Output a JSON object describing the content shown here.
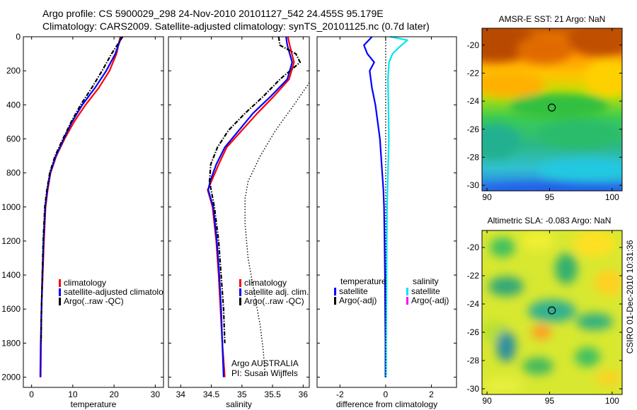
{
  "header": {
    "line1": "Argo profile: CS 5900029_298 24-Nov-2010 20101127_542 24.455S 95.179E",
    "line2": "Climatology: CARS2009. Satellite-adjusted climatology: synTS_20101125.nc (0.7d later)"
  },
  "side_note": "CSIRO 01-Dec-2010 10:31:36",
  "colors": {
    "climatology": "#ff0000",
    "satellite": "#0000ff",
    "argo": "#000000",
    "sal_satellite": "#00e5ee",
    "sal_argo": "#ff00ff"
  },
  "chart_data": [
    {
      "type": "line",
      "name": "temperature-profile",
      "xlabel": "temperature",
      "ylabel": "",
      "xlim": [
        -2,
        32
      ],
      "ylim": [
        2060,
        0
      ],
      "xticks": [
        0,
        10,
        20,
        30
      ],
      "yticks": [
        0,
        200,
        400,
        600,
        800,
        1000,
        1200,
        1400,
        1600,
        1800,
        2000
      ],
      "legend": [
        "climatology",
        "satellite-adjusted climatolo",
        "Argo(..raw -QC)"
      ],
      "series": [
        {
          "name": "climatology",
          "style": "solid",
          "color": "#ff0000",
          "x": [
            21.5,
            20.6,
            18.9,
            16.3,
            13.1,
            10.3,
            8.0,
            6.0,
            4.6,
            3.9,
            3.4,
            3.0,
            2.7,
            2.4,
            2.3,
            2.2
          ],
          "y": [
            0,
            100,
            200,
            300,
            400,
            500,
            600,
            700,
            800,
            900,
            1000,
            1200,
            1400,
            1600,
            1800,
            2000
          ]
        },
        {
          "name": "satellite-adjusted climatolo",
          "style": "solid",
          "color": "#0000ff",
          "x": [
            21.8,
            20.3,
            18.1,
            15.4,
            12.3,
            9.8,
            7.8,
            5.9,
            4.5,
            3.8,
            3.3,
            2.9,
            2.6,
            2.4,
            2.2,
            2.1
          ],
          "y": [
            0,
            100,
            200,
            300,
            400,
            500,
            600,
            700,
            800,
            900,
            1000,
            1200,
            1400,
            1600,
            1800,
            2000
          ]
        },
        {
          "name": "Argo(..raw -QC)",
          "style": "dashdot",
          "color": "#000000",
          "x": [
            22.1,
            19.4,
            17.1,
            14.6,
            11.9,
            9.6,
            7.6,
            5.7,
            4.4,
            3.7,
            3.2,
            2.8,
            2.6,
            2.4,
            2.3
          ],
          "y": [
            0,
            100,
            200,
            300,
            400,
            500,
            600,
            700,
            800,
            900,
            1000,
            1200,
            1400,
            1600,
            1800
          ]
        }
      ]
    },
    {
      "type": "line",
      "name": "salinity-profile",
      "xlabel": "salinity",
      "ylabel": "",
      "xlim": [
        33.8,
        36.1
      ],
      "ylim": [
        2060,
        0
      ],
      "xticks": [
        34,
        34.5,
        35,
        35.5,
        36
      ],
      "xticklabels": [
        "34",
        "34.5",
        "35",
        "35.5",
        "36"
      ],
      "legend": [
        "climatology",
        "satellite adj. clim.",
        "Argo(..raw -QC)"
      ],
      "annotations": [
        "Argo AUSTRALIA",
        "PI: Susan Wijffels"
      ],
      "series": [
        {
          "name": "climatology",
          "style": "solid",
          "color": "#ff0000",
          "x": [
            35.75,
            35.78,
            35.85,
            35.77,
            35.52,
            35.25,
            35.0,
            34.75,
            34.62,
            34.5,
            34.44,
            34.52,
            34.58,
            34.62,
            34.65,
            34.68,
            34.7,
            34.72
          ],
          "y": [
            0,
            50,
            150,
            250,
            350,
            450,
            550,
            650,
            750,
            850,
            900,
            1000,
            1200,
            1400,
            1600,
            1800,
            1900,
            2000
          ]
        },
        {
          "name": "satellite adj. clim.",
          "style": "solid",
          "color": "#0000ff",
          "x": [
            35.72,
            35.74,
            35.82,
            35.74,
            35.47,
            35.18,
            34.95,
            34.72,
            34.58,
            34.48,
            34.45,
            34.53,
            34.59,
            34.63,
            34.66,
            34.68,
            34.69,
            34.7
          ],
          "y": [
            0,
            50,
            150,
            250,
            350,
            450,
            550,
            650,
            750,
            850,
            900,
            1000,
            1200,
            1400,
            1600,
            1800,
            1900,
            2000
          ]
        },
        {
          "name": "Argo(..raw -QC)",
          "style": "dashdot",
          "color": "#000000",
          "x": [
            35.6,
            35.62,
            35.88,
            35.95,
            35.62,
            35.35,
            35.05,
            34.78,
            34.6,
            34.49,
            34.47,
            34.55,
            34.62,
            34.66,
            34.7,
            34.72
          ],
          "y": [
            0,
            50,
            100,
            150,
            250,
            350,
            450,
            550,
            650,
            750,
            850,
            1000,
            1200,
            1400,
            1600,
            1800
          ]
        },
        {
          "name": "",
          "style": "dotted",
          "color": "#000000",
          "x": [
            36.1,
            35.85,
            35.55,
            35.3,
            35.1,
            35.05,
            35.05,
            35.1,
            35.2,
            35.3,
            35.35,
            35.37,
            35.38
          ],
          "y": [
            270,
            400,
            550,
            700,
            850,
            950,
            1100,
            1300,
            1500,
            1700,
            1850,
            1950,
            2000
          ]
        }
      ]
    },
    {
      "type": "line",
      "name": "difference-profile",
      "xlabel": "difference from climatology",
      "ylabel": "",
      "xlim": [
        -3,
        3.1
      ],
      "ylim": [
        2060,
        0
      ],
      "xticks": [
        -2,
        0,
        2
      ],
      "legend_groups": [
        {
          "title": "temperature",
          "items": [
            "satellite",
            "Argo(-adj)"
          ]
        },
        {
          "title": "salinity",
          "items": [
            "satellite",
            "Argo(-adj)"
          ]
        }
      ],
      "series": [
        {
          "name": "temperature satellite",
          "style": "solid",
          "color": "#0000ff",
          "x": [
            -0.6,
            -0.95,
            -0.8,
            -0.5,
            -0.7,
            -0.6,
            -0.45,
            -0.35,
            -0.25,
            -0.2,
            -0.15,
            -0.1,
            -0.07,
            -0.05,
            -0.03,
            -0.02,
            -0.01,
            -0.01
          ],
          "y": [
            0,
            50,
            100,
            150,
            200,
            300,
            400,
            500,
            600,
            700,
            800,
            900,
            1000,
            1200,
            1400,
            1600,
            1800,
            2000
          ]
        },
        {
          "name": "salinity satellite",
          "style": "solid",
          "color": "#00e5ee",
          "x": [
            0.2,
            0.95,
            0.6,
            0.3,
            0.15,
            0.1,
            0.12,
            0.14,
            0.1,
            0.08,
            0.06,
            0.05,
            0.04,
            0.03,
            0.02,
            0.02,
            0.02
          ],
          "y": [
            0,
            20,
            60,
            100,
            150,
            250,
            400,
            600,
            800,
            900,
            1000,
            1200,
            1400,
            1600,
            1800,
            1900,
            2000
          ]
        },
        {
          "name": "",
          "style": "dotted",
          "color": "#000000",
          "x": [
            0,
            0
          ],
          "y": [
            0,
            2000
          ]
        }
      ]
    },
    {
      "type": "heatmap",
      "name": "sst-map",
      "title": "AMSR-E SST: 21 Argo: NaN",
      "xlim": [
        89.6,
        100.8
      ],
      "ylim": [
        -30.4,
        -18.8
      ],
      "xticks": [
        90,
        95,
        100
      ],
      "yticks": [
        -20,
        -22,
        -24,
        -26,
        -28,
        -30
      ],
      "marker": {
        "lon": 95.179,
        "lat": -24.455
      }
    },
    {
      "type": "heatmap",
      "name": "sla-map",
      "title": "Altimetric SLA: -0.083 Argo: NaN",
      "xlim": [
        89.6,
        100.8
      ],
      "ylim": [
        -30.4,
        -18.8
      ],
      "xticks": [
        90,
        95,
        100
      ],
      "yticks": [
        -20,
        -22,
        -24,
        -26,
        -28,
        -30
      ],
      "marker": {
        "lon": 95.179,
        "lat": -24.455
      }
    }
  ]
}
